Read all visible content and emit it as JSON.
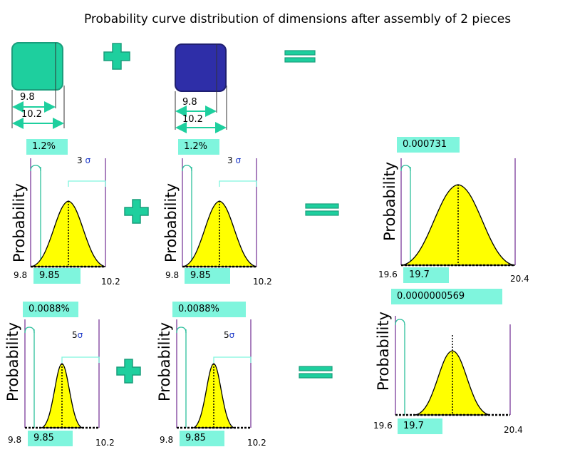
{
  "title": "Probability curve distribution of dimensions after assembly of 2 pieces",
  "pieces": {
    "piece1": {
      "color": "#1ecf9e",
      "inner_dim": "9.8",
      "outer_dim": "10.2"
    },
    "piece2": {
      "color": "#2e2ea8",
      "inner_dim": "9.8",
      "outer_dim": "10.2"
    }
  },
  "colors": {
    "operator": "#1ecf9e",
    "curve_fill": "#ffff00",
    "bound_line": "#7b3b9a",
    "mean_line": "#2dbf9c",
    "tag": "#7ff5dd"
  },
  "ylabel": "Probability",
  "row1": {
    "left": {
      "tag": "1.2%",
      "sigma_num": "3",
      "sigma_sym": "σ",
      "x_min": "9.8",
      "x_mean": "9.85",
      "x_max": "10.2"
    },
    "mid": {
      "tag": "1.2%",
      "sigma_num": "3",
      "sigma_sym": "σ",
      "x_min": "9.8",
      "x_mean": "9.85",
      "x_max": "10.2"
    },
    "right": {
      "tag": "0.000731",
      "x_min": "19.6",
      "x_mean": "19.7",
      "x_max": "20.4"
    }
  },
  "row2": {
    "left": {
      "tag": "0.0088%",
      "sigma_num": "5",
      "sigma_sym": "σ",
      "x_min": "9.8",
      "x_mean": "9.85",
      "x_max": "10.2"
    },
    "mid": {
      "tag": "0.0088%",
      "sigma_num": "5",
      "sigma_sym": "σ",
      "x_min": "9.8",
      "x_mean": "9.85",
      "x_max": "10.2"
    },
    "right": {
      "tag": "0.0000000569",
      "x_min": "19.6",
      "x_mean": "19.7",
      "x_max": "20.4"
    }
  }
}
